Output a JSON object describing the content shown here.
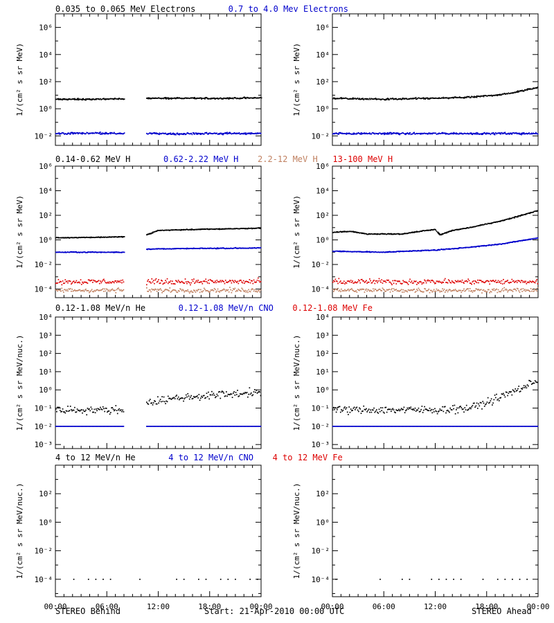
{
  "footer": {
    "left": "STEREO Behind",
    "center": "Start: 21-Apr-2010 00:00 UTC",
    "right": "STEREO Ahead"
  },
  "colors": {
    "black": "#000000",
    "blue": "#0000cc",
    "tan": "#c08060",
    "red": "#dd0000"
  },
  "chart_data": [
    {
      "type": "scatter",
      "row": 0,
      "panel": "left",
      "titles": [
        {
          "text": "0.035 to 0.065 MeV Electrons",
          "color": "#000000"
        },
        {
          "text": "0.7 to 4.0 Mev Electrons",
          "color": "#0000cc"
        }
      ],
      "ylabel": "1/(cm² s sr MeV)",
      "yscale": "log",
      "ylim": [
        0.002,
        10000000
      ],
      "yticks": [
        0.01,
        1,
        100,
        10000,
        1000000
      ],
      "yticklabels": [
        "10⁻²",
        "10⁰",
        "10²",
        "10⁴",
        "10⁶"
      ],
      "xlim": [
        0,
        24
      ],
      "xticks": [
        0,
        6,
        12,
        18,
        24
      ],
      "xticklabels": [
        "00:00",
        "06:00",
        "12:00",
        "18:00",
        "00:00"
      ],
      "gap": [
        8,
        10.6
      ],
      "series": [
        {
          "color": "#000000",
          "x": [
            0,
            4,
            8,
            10.6,
            14,
            18,
            21,
            24
          ],
          "y": [
            5,
            5,
            5.5,
            6,
            6,
            5.8,
            6,
            6.5
          ],
          "spread": 0.06,
          "style": "band"
        },
        {
          "color": "#0000cc",
          "x": [
            0,
            4,
            8,
            10.6,
            14,
            18,
            21,
            24
          ],
          "y": [
            0.015,
            0.016,
            0.015,
            0.015,
            0.014,
            0.015,
            0.015,
            0.015
          ],
          "spread": 0.08,
          "style": "band"
        }
      ]
    },
    {
      "type": "scatter",
      "row": 0,
      "panel": "right",
      "ylabel": "1/(cm² s sr MeV)",
      "yscale": "log",
      "ylim": [
        0.002,
        10000000
      ],
      "yticks": [
        0.01,
        1,
        100,
        10000,
        1000000
      ],
      "yticklabels": [
        "10⁻²",
        "10⁰",
        "10²",
        "10⁴",
        "10⁶"
      ],
      "xlim": [
        0,
        24
      ],
      "xticks": [
        0,
        6,
        12,
        18,
        24
      ],
      "xticklabels": [
        "00:00",
        "06:00",
        "12:00",
        "18:00",
        "00:00"
      ],
      "gap": null,
      "series": [
        {
          "color": "#000000",
          "x": [
            0,
            6,
            12,
            16,
            18,
            20,
            22,
            24
          ],
          "y": [
            6,
            5,
            6,
            7,
            9,
            12,
            20,
            40
          ],
          "spread": 0.07,
          "style": "band"
        },
        {
          "color": "#0000cc",
          "x": [
            0,
            6,
            12,
            18,
            24
          ],
          "y": [
            0.015,
            0.015,
            0.015,
            0.015,
            0.015
          ],
          "spread": 0.08,
          "style": "band"
        }
      ]
    },
    {
      "type": "scatter",
      "row": 1,
      "panel": "left",
      "titles": [
        {
          "text": "0.14-0.62 MeV H",
          "color": "#000000"
        },
        {
          "text": "0.62-2.22 MeV H",
          "color": "#0000cc"
        },
        {
          "text": "2.2-12 MeV H",
          "color": "#c08060"
        },
        {
          "text": "13-100 MeV H",
          "color": "#dd0000"
        }
      ],
      "ylabel": "1/(cm² s sr MeV)",
      "yscale": "log",
      "ylim": [
        2e-05,
        1000000
      ],
      "yticks": [
        0.0001,
        0.01,
        1,
        100,
        10000,
        1000000
      ],
      "yticklabels": [
        "10⁻⁴",
        "10⁻²",
        "10⁰",
        "10²",
        "10⁴",
        "10⁶"
      ],
      "xlim": [
        0,
        24
      ],
      "xticks": [
        0,
        6,
        12,
        18,
        24
      ],
      "xticklabels": [
        "00:00",
        "06:00",
        "12:00",
        "18:00",
        "00:00"
      ],
      "gap": [
        8,
        10.6
      ],
      "series": [
        {
          "color": "#000000",
          "x": [
            0,
            4,
            8,
            10.6,
            12,
            16,
            20,
            24
          ],
          "y": [
            1.5,
            1.6,
            1.8,
            2.5,
            6,
            7,
            8,
            9
          ],
          "spread": 0.04,
          "style": "band"
        },
        {
          "color": "#0000cc",
          "x": [
            0,
            4,
            8,
            10.6,
            16,
            24
          ],
          "y": [
            0.1,
            0.1,
            0.1,
            0.18,
            0.2,
            0.22
          ],
          "spread": 0.04,
          "style": "band"
        },
        {
          "color": "#c08060",
          "x": [
            0,
            12,
            24
          ],
          "y": [
            8e-05,
            8e-05,
            8e-05
          ],
          "spread": 0.15,
          "style": "noise"
        },
        {
          "color": "#dd0000",
          "x": [
            0,
            12,
            24
          ],
          "y": [
            0.0004,
            0.0004,
            0.0004
          ],
          "spread": 0.18,
          "style": "noise"
        }
      ]
    },
    {
      "type": "scatter",
      "row": 1,
      "panel": "right",
      "ylabel": "1/(cm² s sr MeV)",
      "yscale": "log",
      "ylim": [
        2e-05,
        1000000
      ],
      "yticks": [
        0.0001,
        0.01,
        1,
        100,
        10000,
        1000000
      ],
      "yticklabels": [
        "10⁻⁴",
        "10⁻²",
        "10⁰",
        "10²",
        "10⁴",
        "10⁶"
      ],
      "xlim": [
        0,
        24
      ],
      "xticks": [
        0,
        6,
        12,
        18,
        24
      ],
      "xticklabels": [
        "00:00",
        "06:00",
        "12:00",
        "18:00",
        "00:00"
      ],
      "gap": null,
      "series": [
        {
          "color": "#000000",
          "x": [
            0,
            2,
            4,
            8,
            11,
            12,
            12.5,
            14,
            16,
            18,
            20,
            22,
            24
          ],
          "y": [
            4,
            5,
            3,
            3,
            6,
            7,
            2.5,
            6,
            10,
            20,
            40,
            100,
            250
          ],
          "spread": 0.04,
          "style": "band"
        },
        {
          "color": "#0000cc",
          "x": [
            0,
            6,
            12,
            16,
            20,
            24
          ],
          "y": [
            0.12,
            0.1,
            0.15,
            0.25,
            0.5,
            1.5
          ],
          "spread": 0.04,
          "style": "band"
        },
        {
          "color": "#c08060",
          "x": [
            0,
            12,
            24
          ],
          "y": [
            8e-05,
            8e-05,
            8e-05
          ],
          "spread": 0.15,
          "style": "noise"
        },
        {
          "color": "#dd0000",
          "x": [
            0,
            12,
            24
          ],
          "y": [
            0.0004,
            0.0004,
            0.0004
          ],
          "spread": 0.18,
          "style": "noise"
        }
      ]
    },
    {
      "type": "scatter",
      "row": 2,
      "panel": "left",
      "titles": [
        {
          "text": "0.12-1.08 MeV/n He",
          "color": "#000000"
        },
        {
          "text": "0.12-1.08 MeV/n CNO",
          "color": "#0000cc"
        },
        {
          "text": "0.12-1.08 MeV Fe",
          "color": "#dd0000"
        }
      ],
      "ylabel": "1/(cm² s sr MeV/nuc.)",
      "yscale": "log",
      "ylim": [
        0.0006,
        10000
      ],
      "yticks": [
        0.001,
        0.01,
        0.1,
        1,
        10,
        100,
        1000,
        10000
      ],
      "yticklabels": [
        "10⁻³",
        "10⁻²",
        "10⁻¹",
        "10⁰",
        "10¹",
        "10²",
        "10³",
        "10⁴"
      ],
      "xlim": [
        0,
        24
      ],
      "xticks": [
        0,
        6,
        12,
        18,
        24
      ],
      "xticklabels": [
        "00:00",
        "06:00",
        "12:00",
        "18:00",
        "00:00"
      ],
      "gap": [
        8,
        10.6
      ],
      "series": [
        {
          "color": "#000000",
          "x": [
            0,
            4,
            8,
            10.6,
            14,
            18,
            21,
            24
          ],
          "y": [
            0.08,
            0.08,
            0.08,
            0.2,
            0.35,
            0.5,
            0.6,
            0.8
          ],
          "spread": 0.18,
          "style": "noise"
        },
        {
          "color": "#0000cc",
          "x": [
            0,
            12,
            24
          ],
          "y": [
            0.01,
            0.01,
            0.01
          ],
          "spread": 0.0,
          "style": "flat"
        }
      ]
    },
    {
      "type": "scatter",
      "row": 2,
      "panel": "right",
      "ylabel": "1/(cm² s sr MeV/nuc.)",
      "yscale": "log",
      "ylim": [
        0.0006,
        10000
      ],
      "yticks": [
        0.001,
        0.01,
        0.1,
        1,
        10,
        100,
        1000,
        10000
      ],
      "yticklabels": [
        "10⁻³",
        "10⁻²",
        "10⁻¹",
        "10⁰",
        "10¹",
        "10²",
        "10³",
        "10⁴"
      ],
      "xlim": [
        0,
        24
      ],
      "xticks": [
        0,
        6,
        12,
        18,
        24
      ],
      "xticklabels": [
        "00:00",
        "06:00",
        "12:00",
        "18:00",
        "00:00"
      ],
      "gap": null,
      "series": [
        {
          "color": "#000000",
          "x": [
            0,
            6,
            12,
            16,
            18,
            20,
            22,
            24
          ],
          "y": [
            0.08,
            0.08,
            0.08,
            0.1,
            0.2,
            0.5,
            1.2,
            3.5
          ],
          "spread": 0.18,
          "style": "noise"
        },
        {
          "color": "#0000cc",
          "x": [
            0,
            12,
            24
          ],
          "y": [
            0.01,
            0.01,
            0.01
          ],
          "spread": 0.0,
          "style": "flat"
        }
      ]
    },
    {
      "type": "scatter",
      "row": 3,
      "panel": "left",
      "titles": [
        {
          "text": "4 to 12 MeV/n He",
          "color": "#000000"
        },
        {
          "text": "4 to 12 MeV/n CNO",
          "color": "#0000cc"
        },
        {
          "text": "4 to 12 MeV Fe",
          "color": "#dd0000"
        }
      ],
      "ylabel": "1/(cm² s sr MeV/nuc.)",
      "yscale": "log",
      "ylim": [
        6e-06,
        10000
      ],
      "yticks": [
        0.0001,
        0.01,
        1,
        100
      ],
      "yticklabels": [
        "10⁻⁴",
        "10⁻²",
        "10⁰",
        "10²"
      ],
      "xlim": [
        0,
        24
      ],
      "xticks": [
        0,
        6,
        12,
        18,
        24
      ],
      "xticklabels": [
        "00:00",
        "06:00",
        "12:00",
        "18:00",
        "00:00"
      ],
      "gap": null,
      "series": [
        {
          "color": "#000000",
          "x": [
            0,
            12,
            24
          ],
          "y": [
            0.0001,
            0.0001,
            0.0001
          ],
          "spread": 0.0,
          "style": "sparse"
        }
      ]
    },
    {
      "type": "scatter",
      "row": 3,
      "panel": "right",
      "ylabel": "1/(cm² s sr MeV/nuc.)",
      "yscale": "log",
      "ylim": [
        6e-06,
        10000
      ],
      "yticks": [
        0.0001,
        0.01,
        1,
        100
      ],
      "yticklabels": [
        "10⁻⁴",
        "10⁻²",
        "10⁰",
        "10²"
      ],
      "xlim": [
        0,
        24
      ],
      "xticks": [
        0,
        6,
        12,
        18,
        24
      ],
      "xticklabels": [
        "00:00",
        "06:00",
        "12:00",
        "18:00",
        "00:00"
      ],
      "gap": null,
      "series": [
        {
          "color": "#000000",
          "x": [
            0,
            12,
            24
          ],
          "y": [
            0.0001,
            0.0001,
            0.0001
          ],
          "spread": 0.0,
          "style": "sparse"
        }
      ]
    }
  ]
}
